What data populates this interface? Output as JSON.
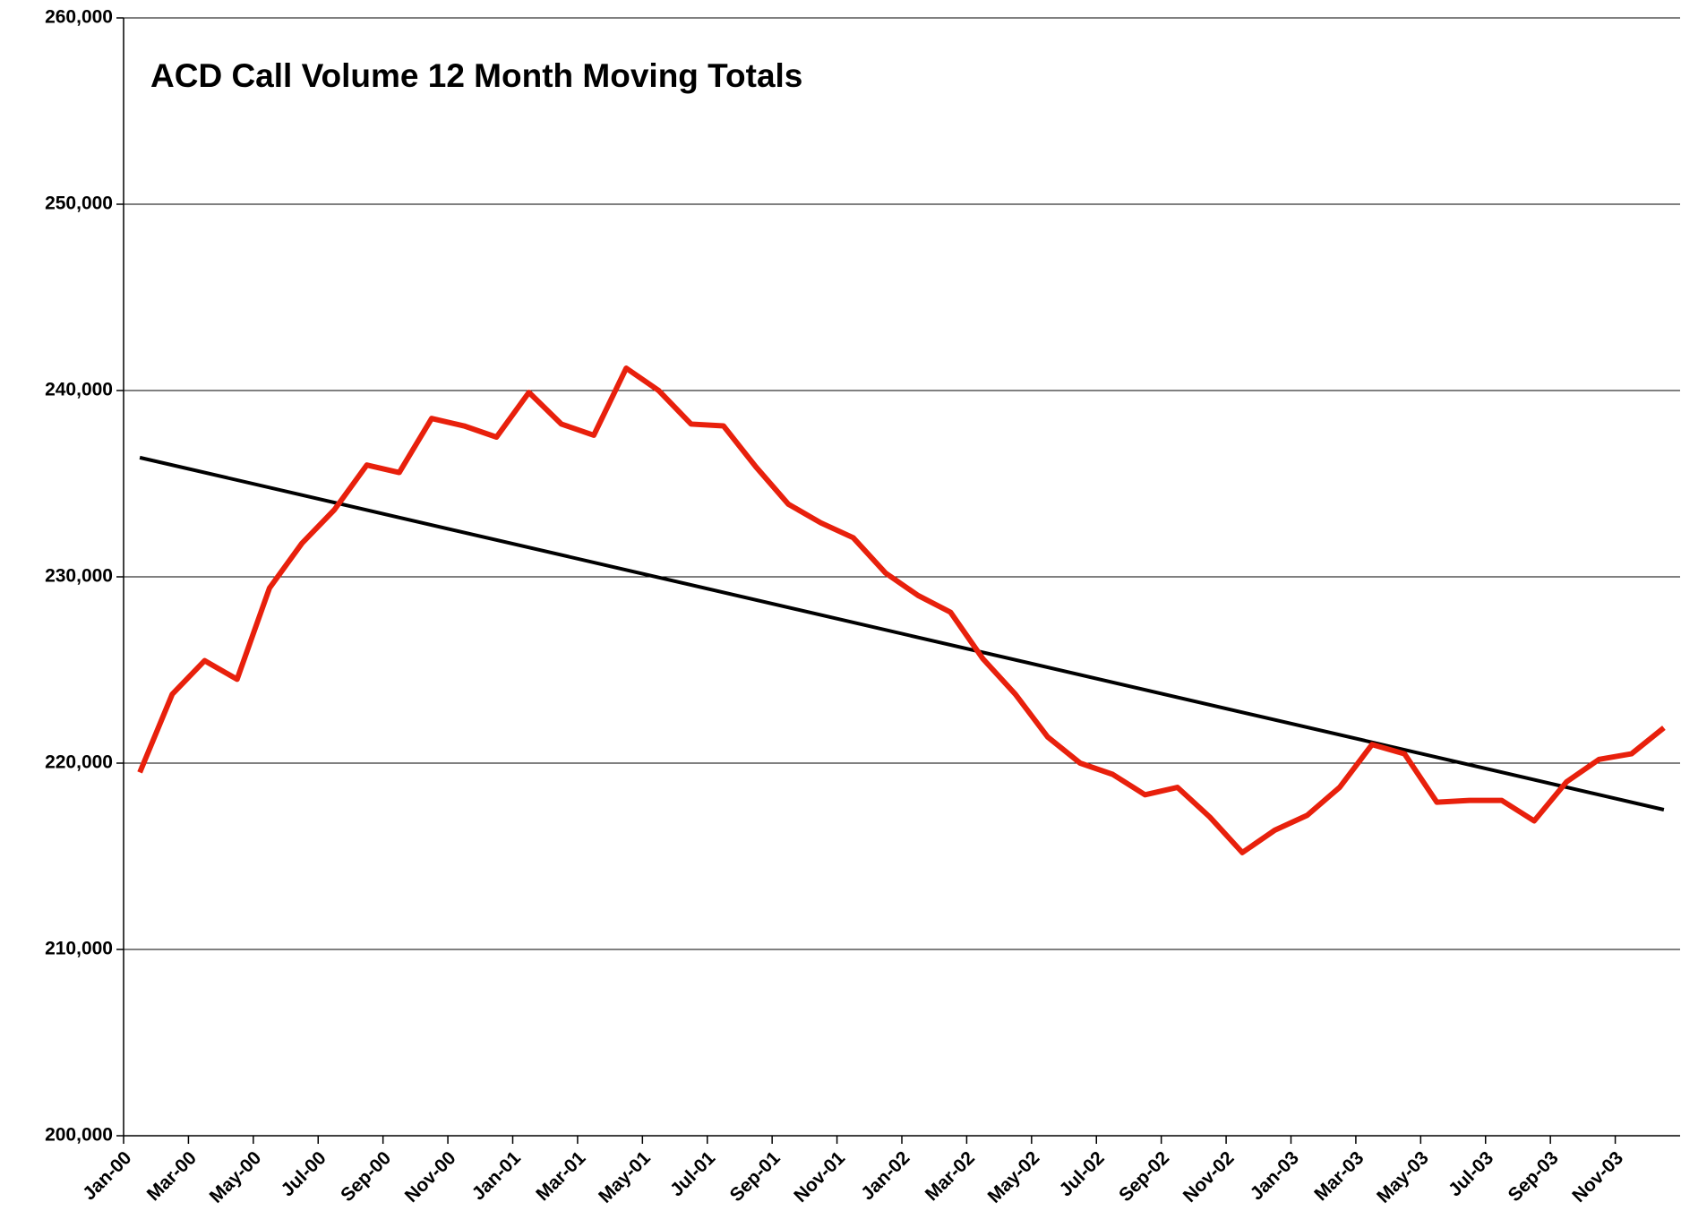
{
  "chart_data": {
    "type": "line",
    "title": "ACD Call Volume 12 Month Moving Totals",
    "categories": [
      "Jan-00",
      null,
      "Mar-00",
      null,
      "May-00",
      null,
      "Jul-00",
      null,
      "Sep-00",
      null,
      "Nov-00",
      null,
      "Jan-01",
      null,
      "Mar-01",
      null,
      "May-01",
      null,
      "Jul-01",
      null,
      "Sep-01",
      null,
      "Nov-01",
      null,
      "Jan-02",
      null,
      "Mar-02",
      null,
      "May-02",
      null,
      "Jul-02",
      null,
      "Sep-02",
      null,
      "Nov-02",
      null,
      "Jan-03",
      null,
      "Mar-03",
      null,
      "May-03",
      null,
      "Jul-03",
      null,
      "Sep-03",
      null,
      "Nov-03",
      null
    ],
    "series": [
      {
        "color": "#e8200c",
        "values": [
          219500,
          223700,
          225500,
          224500,
          229400,
          231800,
          233600,
          236000,
          235600,
          238500,
          238100,
          237500,
          239900,
          238200,
          237600,
          241200,
          240000,
          238200,
          238100,
          235900,
          233900,
          232900,
          232100,
          230200,
          229000,
          228100,
          225600,
          223700,
          221400,
          220000,
          219400,
          218300,
          218700,
          217100,
          215200,
          216400,
          217200,
          218700,
          221000,
          220500,
          217900,
          218000,
          218000,
          216900,
          219000,
          220200,
          220500,
          221900
        ]
      }
    ],
    "trendline": {
      "color": "#000000",
      "start": 236400,
      "end": 217500
    },
    "ylim": [
      200000,
      260000
    ],
    "yticks": [
      {
        "value": 200000,
        "label": "200,000"
      },
      {
        "value": 210000,
        "label": "210,000"
      },
      {
        "value": 220000,
        "label": "220,000"
      },
      {
        "value": 230000,
        "label": "230,000"
      },
      {
        "value": 240000,
        "label": "240,000"
      },
      {
        "value": 250000,
        "label": "250,000"
      },
      {
        "value": 260000,
        "label": "260,000"
      }
    ],
    "grid": true
  }
}
